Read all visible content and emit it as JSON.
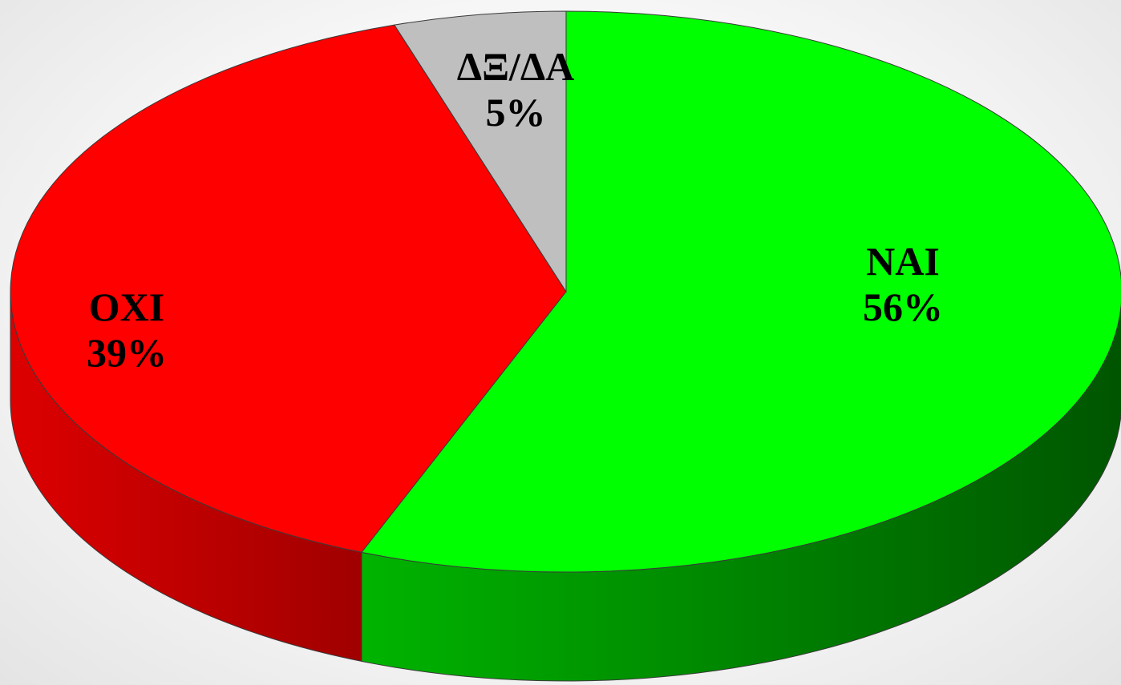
{
  "chart_data": {
    "type": "pie",
    "style": "3d",
    "title": "",
    "slices": [
      {
        "label": "NAI",
        "value": 56,
        "value_label": "56%",
        "color": "#00ff00",
        "side_dark": "#005500",
        "side_light": "#00b400"
      },
      {
        "label": "OXI",
        "value": 39,
        "value_label": "39%",
        "color": "#ff0000",
        "side_dark": "#a00000",
        "side_light": "#dd0000"
      },
      {
        "label": "ΔΞ/ΔΑ",
        "value": 5,
        "value_label": "5%",
        "color": "#bfbfbf",
        "side_dark": "#8a8a8a",
        "side_light": "#a8a8a8"
      }
    ],
    "start_angle": "12 o'clock",
    "direction": "clockwise",
    "legend": "none"
  }
}
